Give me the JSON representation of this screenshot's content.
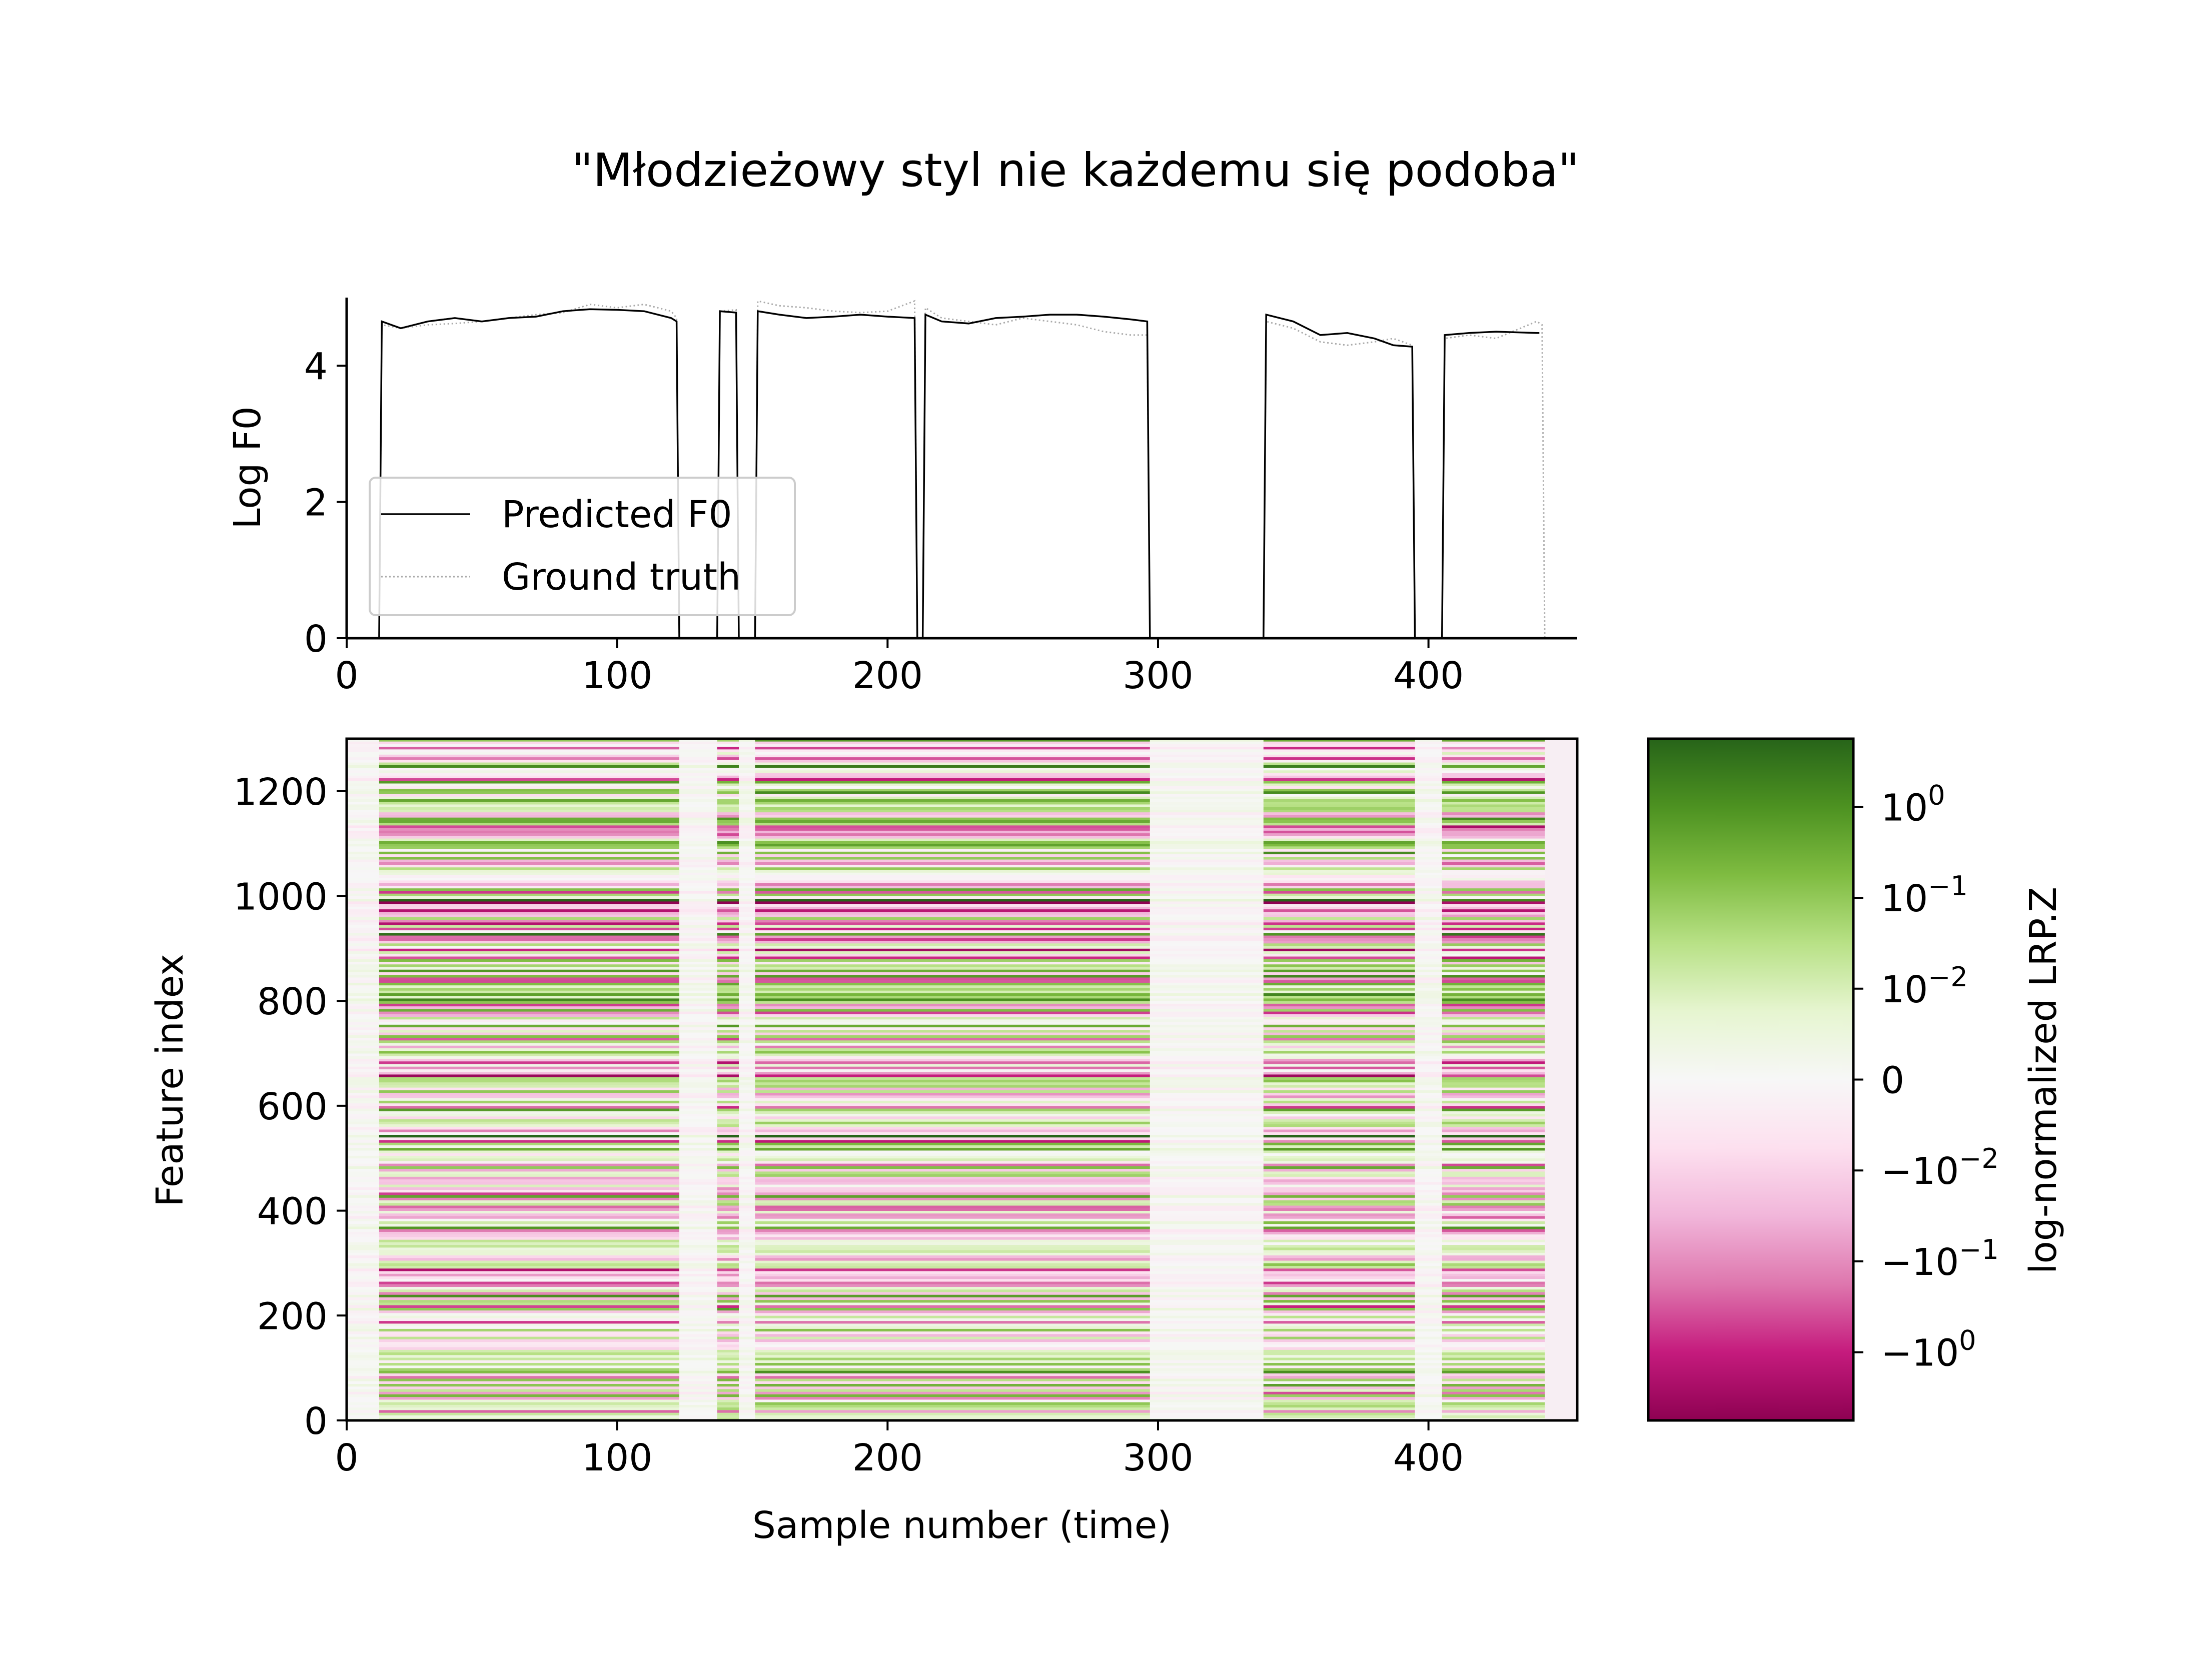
{
  "title": "\"Młodzieżowy styl nie każdemu się podoba\"",
  "chart_data": [
    {
      "type": "line",
      "ylabel": "Log F0",
      "xlabel": "",
      "xlim": [
        0,
        455
      ],
      "ylim": [
        0,
        5
      ],
      "x_ticks": [
        0,
        100,
        200,
        300,
        400
      ],
      "y_ticks": [
        0,
        2,
        4
      ],
      "legend_position": "lower-left",
      "series": [
        {
          "name": "Predicted F0",
          "style": "solid",
          "color": "#000000",
          "points": [
            [
              0,
              0
            ],
            [
              12,
              0
            ],
            [
              13,
              4.65
            ],
            [
              20,
              4.55
            ],
            [
              30,
              4.65
            ],
            [
              40,
              4.7
            ],
            [
              50,
              4.65
            ],
            [
              60,
              4.7
            ],
            [
              70,
              4.72
            ],
            [
              80,
              4.8
            ],
            [
              90,
              4.83
            ],
            [
              100,
              4.82
            ],
            [
              110,
              4.8
            ],
            [
              120,
              4.7
            ],
            [
              122,
              4.65
            ],
            [
              123,
              0
            ],
            [
              137,
              0
            ],
            [
              138,
              4.8
            ],
            [
              144,
              4.78
            ],
            [
              145,
              0
            ],
            [
              151,
              0
            ],
            [
              152,
              4.8
            ],
            [
              160,
              4.75
            ],
            [
              170,
              4.7
            ],
            [
              180,
              4.72
            ],
            [
              190,
              4.75
            ],
            [
              200,
              4.72
            ],
            [
              210,
              4.7
            ],
            [
              211,
              0
            ],
            [
              213,
              0
            ],
            [
              214,
              4.75
            ],
            [
              220,
              4.65
            ],
            [
              230,
              4.62
            ],
            [
              240,
              4.7
            ],
            [
              250,
              4.72
            ],
            [
              260,
              4.75
            ],
            [
              270,
              4.75
            ],
            [
              280,
              4.72
            ],
            [
              290,
              4.68
            ],
            [
              296,
              4.65
            ],
            [
              297,
              0
            ],
            [
              339,
              0
            ],
            [
              340,
              4.75
            ],
            [
              350,
              4.65
            ],
            [
              360,
              4.45
            ],
            [
              370,
              4.48
            ],
            [
              380,
              4.4
            ],
            [
              387,
              4.3
            ],
            [
              394,
              4.28
            ],
            [
              395,
              0
            ],
            [
              405,
              0
            ],
            [
              406,
              4.45
            ],
            [
              415,
              4.48
            ],
            [
              425,
              4.5
            ],
            [
              440,
              4.48
            ],
            [
              441,
              4.48
            ]
          ]
        },
        {
          "name": "Ground truth",
          "style": "dotted",
          "color": "#aaaaaa",
          "points": [
            [
              0,
              0
            ],
            [
              12,
              0
            ],
            [
              13,
              4.6
            ],
            [
              20,
              4.55
            ],
            [
              30,
              4.6
            ],
            [
              40,
              4.62
            ],
            [
              50,
              4.65
            ],
            [
              60,
              4.7
            ],
            [
              70,
              4.75
            ],
            [
              80,
              4.78
            ],
            [
              90,
              4.9
            ],
            [
              100,
              4.85
            ],
            [
              110,
              4.9
            ],
            [
              120,
              4.8
            ],
            [
              122,
              4.7
            ],
            [
              123,
              0
            ],
            [
              137,
              0
            ],
            [
              138,
              4.8
            ],
            [
              144,
              4.82
            ],
            [
              145,
              0
            ],
            [
              151,
              0
            ],
            [
              152,
              4.95
            ],
            [
              160,
              4.88
            ],
            [
              170,
              4.85
            ],
            [
              180,
              4.8
            ],
            [
              190,
              4.78
            ],
            [
              200,
              4.8
            ],
            [
              210,
              4.95
            ],
            [
              211,
              0
            ],
            [
              213,
              0
            ],
            [
              214,
              4.85
            ],
            [
              220,
              4.7
            ],
            [
              230,
              4.65
            ],
            [
              240,
              4.6
            ],
            [
              250,
              4.7
            ],
            [
              260,
              4.65
            ],
            [
              270,
              4.6
            ],
            [
              280,
              4.5
            ],
            [
              290,
              4.45
            ],
            [
              296,
              4.45
            ],
            [
              297,
              0
            ],
            [
              339,
              0
            ],
            [
              340,
              4.65
            ],
            [
              350,
              4.55
            ],
            [
              360,
              4.35
            ],
            [
              370,
              4.3
            ],
            [
              380,
              4.35
            ],
            [
              387,
              4.4
            ],
            [
              394,
              4.3
            ],
            [
              395,
              0
            ],
            [
              405,
              0
            ],
            [
              406,
              4.4
            ],
            [
              415,
              4.45
            ],
            [
              425,
              4.4
            ],
            [
              440,
              4.65
            ],
            [
              442,
              4.6
            ],
            [
              443,
              0
            ]
          ]
        }
      ]
    },
    {
      "type": "heatmap",
      "xlabel": "Sample number (time)",
      "ylabel": "Feature index",
      "xlim": [
        0,
        455
      ],
      "ylim": [
        0,
        1300
      ],
      "x_ticks": [
        0,
        100,
        200,
        300,
        400
      ],
      "y_ticks": [
        0,
        200,
        400,
        600,
        800,
        1000,
        1200
      ],
      "n_features": 1300,
      "n_samples": 443,
      "colormap": "PiYG",
      "colorbar_label": "log-normalized LRP.Z",
      "colorbar_ticks": [
        "10^0",
        "10^-1",
        "10^-2",
        "0",
        "-10^-2",
        "-10^-1",
        "-10^0"
      ],
      "colorbar_colors": [
        "#8e0152",
        "#c51b7d",
        "#de77ae",
        "#f1b6da",
        "#fde0ef",
        "#f7f7f7",
        "#e6f5d0",
        "#b8e186",
        "#7fbc41",
        "#4d9221",
        "#276419"
      ],
      "low_activity_intervals": [
        [
          0,
          12
        ],
        [
          123,
          137
        ],
        [
          145,
          151
        ],
        [
          297,
          339
        ],
        [
          395,
          405
        ]
      ],
      "blank_after": 443
    }
  ]
}
